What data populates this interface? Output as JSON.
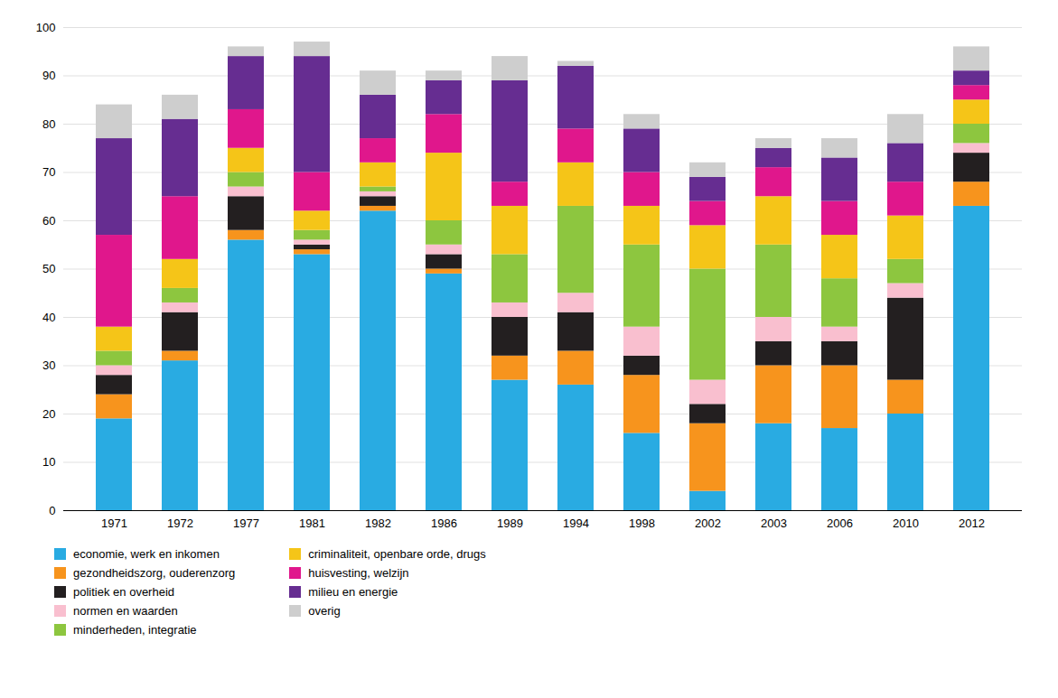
{
  "chart_data": {
    "type": "bar",
    "stacked": true,
    "grid": true,
    "legend": "bottom",
    "categories": [
      "1971",
      "1972",
      "1977",
      "1981",
      "1982",
      "1986",
      "1989",
      "1994",
      "1998",
      "2002",
      "2003",
      "2006",
      "2010",
      "2012"
    ],
    "series": [
      {
        "name": "economie, werk en inkomen",
        "color": "#29ABE2",
        "values": [
          19,
          31,
          56,
          53,
          62,
          49,
          27,
          26,
          16,
          4,
          18,
          17,
          20,
          63
        ]
      },
      {
        "name": "gezondheidszorg, ouderenzorg",
        "color": "#F7941D",
        "values": [
          5,
          2,
          2,
          1,
          1,
          1,
          5,
          7,
          12,
          14,
          12,
          13,
          7,
          5
        ]
      },
      {
        "name": "politiek en overheid",
        "color": "#231F20",
        "values": [
          4,
          8,
          7,
          1,
          2,
          3,
          8,
          8,
          4,
          4,
          5,
          5,
          17,
          6
        ]
      },
      {
        "name": "normen en waarden",
        "color": "#F9BFCF",
        "values": [
          2,
          2,
          2,
          1,
          1,
          2,
          3,
          4,
          6,
          5,
          5,
          3,
          3,
          2
        ]
      },
      {
        "name": "minderheden, integratie",
        "color": "#8DC63F",
        "values": [
          3,
          3,
          3,
          2,
          1,
          5,
          10,
          18,
          17,
          23,
          15,
          10,
          5,
          4
        ]
      },
      {
        "name": "criminaliteit, openbare orde, drugs",
        "color": "#F5C518",
        "values": [
          5,
          6,
          5,
          4,
          5,
          14,
          10,
          9,
          8,
          9,
          10,
          9,
          9,
          5
        ]
      },
      {
        "name": "huisvesting, welzijn",
        "color": "#E0178C",
        "values": [
          19,
          13,
          8,
          8,
          5,
          8,
          5,
          7,
          7,
          5,
          6,
          7,
          7,
          3
        ]
      },
      {
        "name": "milieu en energie",
        "color": "#662D91",
        "values": [
          20,
          16,
          11,
          24,
          9,
          7,
          21,
          13,
          9,
          5,
          4,
          9,
          8,
          3
        ]
      },
      {
        "name": "overig",
        "color": "#CECECE",
        "values": [
          7,
          5,
          2,
          3,
          5,
          2,
          5,
          1,
          3,
          3,
          2,
          4,
          6,
          5
        ]
      }
    ],
    "ylim": [
      0,
      100
    ],
    "yticks": [
      0,
      10,
      20,
      30,
      40,
      50,
      60,
      70,
      80,
      90,
      100
    ]
  }
}
